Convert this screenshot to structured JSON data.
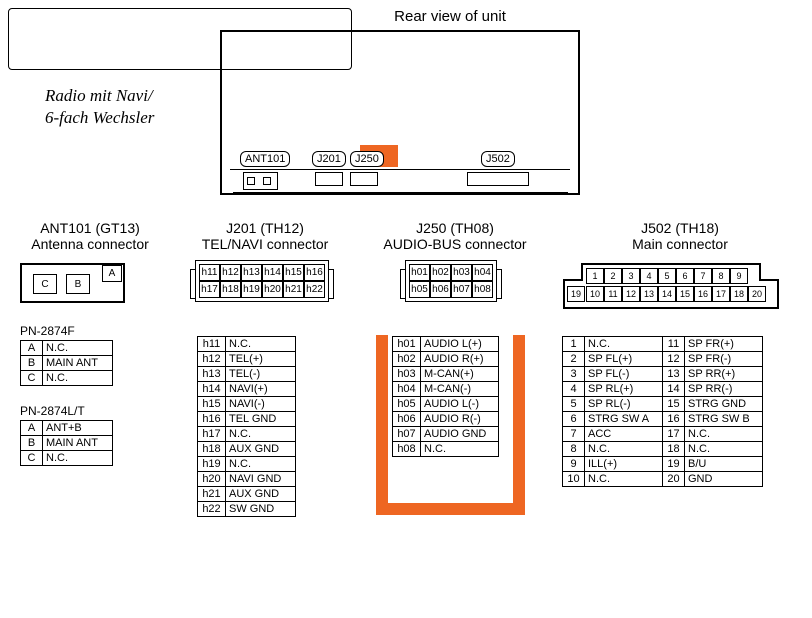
{
  "titleTop": "Rear view of unit",
  "sideLabel": "Radio mit Navi/\n6-fach Wechsler",
  "highlightColor": "#ee6622",
  "unit": {
    "portLabels": {
      "ant": "ANT101",
      "j201": "J201",
      "j250": "J250",
      "j502": "J502"
    }
  },
  "sections": {
    "ant": {
      "line1": "ANT101 (GT13)",
      "line2": "Antenna connector"
    },
    "j201": {
      "line1": "J201 (TH12)",
      "line2": "TEL/NAVI connector"
    },
    "j250": {
      "line1": "J250 (TH08)",
      "line2": "AUDIO-BUS connector"
    },
    "j502": {
      "line1": "J502 (TH18)",
      "line2": "Main connector"
    }
  },
  "antConn": {
    "cells": [
      "C",
      "B",
      "A"
    ]
  },
  "antTables": [
    {
      "title": "PN-2874F",
      "rows": [
        [
          "A",
          "N.C."
        ],
        [
          "B",
          "MAIN ANT"
        ],
        [
          "C",
          "N.C."
        ]
      ]
    },
    {
      "title": "PN-2874L/T",
      "rows": [
        [
          "A",
          "ANT+B"
        ],
        [
          "B",
          "MAIN ANT"
        ],
        [
          "C",
          "N.C."
        ]
      ]
    }
  ],
  "j201Conn": {
    "row1": [
      "h11",
      "h12",
      "h13",
      "h14",
      "h15",
      "h16"
    ],
    "row2": [
      "h17",
      "h18",
      "h19",
      "h20",
      "h21",
      "h22"
    ]
  },
  "j201Table": {
    "rows": [
      [
        "h11",
        "N.C."
      ],
      [
        "h12",
        "TEL(+)"
      ],
      [
        "h13",
        "TEL(-)"
      ],
      [
        "h14",
        "NAVI(+)"
      ],
      [
        "h15",
        "NAVI(-)"
      ],
      [
        "h16",
        "TEL GND"
      ],
      [
        "h17",
        "N.C."
      ],
      [
        "h18",
        "AUX GND"
      ],
      [
        "h19",
        "N.C."
      ],
      [
        "h20",
        "NAVI GND"
      ],
      [
        "h21",
        "AUX GND"
      ],
      [
        "h22",
        "SW GND"
      ]
    ]
  },
  "j250Conn": {
    "row1": [
      "h01",
      "h02",
      "h03",
      "h04"
    ],
    "row2": [
      "h05",
      "h06",
      "h07",
      "h08"
    ]
  },
  "j250Table": {
    "rows": [
      [
        "h01",
        "AUDIO L(+)"
      ],
      [
        "h02",
        "AUDIO R(+)"
      ],
      [
        "h03",
        "M-CAN(+)"
      ],
      [
        "h04",
        "M-CAN(-)"
      ],
      [
        "h05",
        "AUDIO L(-)"
      ],
      [
        "h06",
        "AUDIO R(-)"
      ],
      [
        "h07",
        "AUDIO GND"
      ],
      [
        "h08",
        "N.C."
      ]
    ]
  },
  "j502Conn": {
    "row1": [
      "1",
      "2",
      "3",
      "4",
      "5",
      "6",
      "7",
      "8",
      "9"
    ],
    "row2": [
      "19",
      "10",
      "11",
      "12",
      "13",
      "14",
      "15",
      "16",
      "17",
      "18",
      "20"
    ]
  },
  "j502Table": {
    "left": [
      [
        "1",
        "N.C."
      ],
      [
        "2",
        "SP FL(+)"
      ],
      [
        "3",
        "SP FL(-)"
      ],
      [
        "4",
        "SP RL(+)"
      ],
      [
        "5",
        "SP RL(-)"
      ],
      [
        "6",
        "STRG SW A"
      ],
      [
        "7",
        "ACC"
      ],
      [
        "8",
        "N.C."
      ],
      [
        "9",
        "ILL(+)"
      ],
      [
        "10",
        "N.C."
      ]
    ],
    "right": [
      [
        "11",
        "SP FR(+)"
      ],
      [
        "12",
        "SP FR(-)"
      ],
      [
        "13",
        "SP RR(+)"
      ],
      [
        "14",
        "SP RR(-)"
      ],
      [
        "15",
        "STRG GND"
      ],
      [
        "16",
        "STRG SW B"
      ],
      [
        "17",
        "N.C."
      ],
      [
        "18",
        "N.C."
      ],
      [
        "19",
        "B/U"
      ],
      [
        "20",
        "GND"
      ]
    ]
  }
}
